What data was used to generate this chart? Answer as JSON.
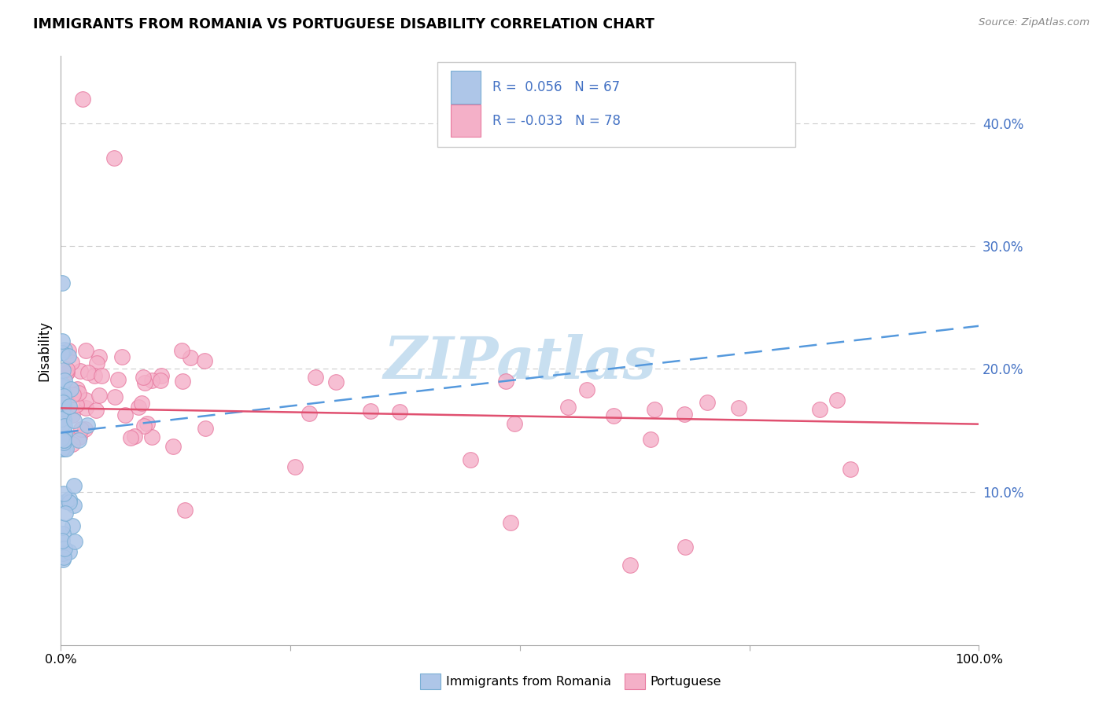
{
  "title": "IMMIGRANTS FROM ROMANIA VS PORTUGUESE DISABILITY CORRELATION CHART",
  "source": "Source: ZipAtlas.com",
  "ylabel": "Disability",
  "romania_color": "#aec6e8",
  "portuguese_color": "#f4b0c8",
  "romania_edge": "#7aafd4",
  "portuguese_edge": "#e87aa0",
  "trendline_romania_color": "#5599dd",
  "trendline_portuguese_color": "#e05070",
  "background_color": "#ffffff",
  "grid_color": "#cccccc",
  "right_tick_color": "#4472c4",
  "watermark_color": "#c8dff0",
  "xlim": [
    0.0,
    1.0
  ],
  "ylim": [
    -0.025,
    0.455
  ],
  "ytick_vals": [
    0.1,
    0.2,
    0.3,
    0.4
  ],
  "ytick_labels": [
    "10.0%",
    "20.0%",
    "30.0%",
    "40.0%"
  ],
  "xtick_vals": [
    0.0,
    0.25,
    0.5,
    0.75,
    1.0
  ],
  "xtick_labels": [
    "0.0%",
    "",
    "",
    "",
    "100.0%"
  ],
  "legend_r1": "R =  0.056   N = 67",
  "legend_r2": "R = -0.033   N = 78",
  "legend_color": "#4472c4",
  "bottom_label1": "Immigrants from Romania",
  "bottom_label2": "Portuguese",
  "romania_trendline": [
    [
      0.0,
      0.148
    ],
    [
      1.0,
      0.235
    ]
  ],
  "portuguese_trendline": [
    [
      0.0,
      0.168
    ],
    [
      1.0,
      0.155
    ]
  ]
}
